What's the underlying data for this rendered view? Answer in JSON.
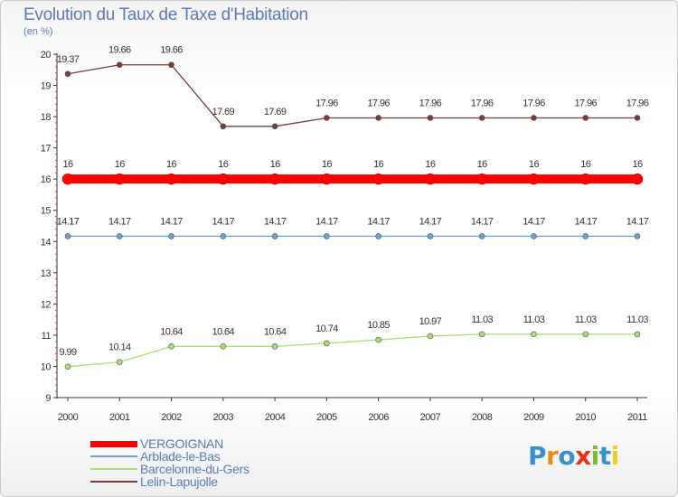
{
  "header": {
    "title": "Evolution du Taux de Taxe d'Habitation",
    "subtitle": "(en %)"
  },
  "logo": {
    "text": "Proxiti",
    "letter_colors": [
      "#3a8fd0",
      "#f08a1c",
      "#3a8fd0",
      "#e8331c",
      "#7bbf2a",
      "#3a8fd0",
      "#e8d21c"
    ]
  },
  "chart_data": {
    "type": "line",
    "title": "Evolution du Taux de Taxe d'Habitation",
    "subtitle": "(en %)",
    "xlabel": "",
    "ylabel": "",
    "x": [
      "2000",
      "2001",
      "2002",
      "2003",
      "2004",
      "2005",
      "2006",
      "2007",
      "2008",
      "2009",
      "2010",
      "2011"
    ],
    "ylim": [
      9,
      20
    ],
    "yticks": [
      "9",
      "10",
      "11",
      "12",
      "13",
      "14",
      "15",
      "16",
      "17",
      "18",
      "19",
      "20"
    ],
    "grid": false,
    "legend_position": "bottom-left",
    "series": [
      {
        "name": "VERGOIGNAN",
        "color": "#ff0000",
        "values": [
          16,
          16,
          16,
          16,
          16,
          16,
          16,
          16,
          16,
          16,
          16,
          16
        ],
        "labels": [
          "16",
          "16",
          "16",
          "16",
          "16",
          "16",
          "16",
          "16",
          "16",
          "16",
          "16",
          "16"
        ]
      },
      {
        "name": "Arblade-le-Bas",
        "color": "#6fa0d0",
        "values": [
          14.17,
          14.17,
          14.17,
          14.17,
          14.17,
          14.17,
          14.17,
          14.17,
          14.17,
          14.17,
          14.17,
          14.17
        ],
        "labels": [
          "14.17",
          "14.17",
          "14.17",
          "14.17",
          "14.17",
          "14.17",
          "14.17",
          "14.17",
          "14.17",
          "14.17",
          "14.17",
          "14.17"
        ]
      },
      {
        "name": "Barcelonne-du-Gers",
        "color": "#a8de72",
        "values": [
          9.99,
          10.14,
          10.64,
          10.64,
          10.64,
          10.74,
          10.85,
          10.97,
          11.03,
          11.03,
          11.03,
          11.03
        ],
        "labels": [
          "9.99",
          "10.14",
          "10.64",
          "10.64",
          "10.64",
          "10.74",
          "10.85",
          "10.97",
          "11.03",
          "11.03",
          "11.03",
          "11.03"
        ]
      },
      {
        "name": "Lelin-Lapujolle",
        "color": "#7a3a3a",
        "values": [
          19.37,
          19.66,
          19.66,
          17.69,
          17.69,
          17.96,
          17.96,
          17.96,
          17.96,
          17.96,
          17.96,
          17.96
        ],
        "labels": [
          "19.37",
          "19.66",
          "19.66",
          "17.69",
          "17.69",
          "17.96",
          "17.96",
          "17.96",
          "17.96",
          "17.96",
          "17.96",
          "17.96"
        ]
      }
    ]
  }
}
